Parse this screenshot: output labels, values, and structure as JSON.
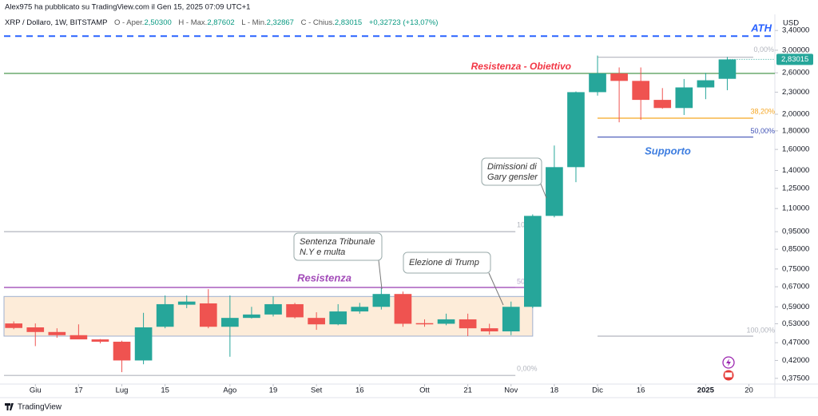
{
  "header": {
    "published": "Alex975 ha pubblicato su TradingView.com il Gen 15, 2025 07:09 UTC+1",
    "symbol": "XRP / Dollaro, 1W, BITSTAMP",
    "ohlc": [
      {
        "label": "O - Aper.",
        "value": "2,50300"
      },
      {
        "label": "H - Max.",
        "value": "2,87602"
      },
      {
        "label": "L - Min.",
        "value": "2,32867"
      },
      {
        "label": "C - Chius.",
        "value": "2,83015"
      }
    ],
    "change": "+0,32723 (+13,07%)"
  },
  "chart_data": {
    "type": "candlestick",
    "x": [
      0,
      1,
      2,
      3,
      4,
      5,
      6,
      7,
      8,
      9,
      10,
      11,
      12,
      13,
      14,
      15,
      16,
      17,
      18,
      19,
      20,
      21,
      22,
      23,
      24,
      25,
      26,
      27,
      28,
      29,
      30,
      31,
      32,
      33
    ],
    "open": [
      0.531,
      0.518,
      0.503,
      0.493,
      0.48,
      0.473,
      0.42,
      0.52,
      0.598,
      0.603,
      0.52,
      0.55,
      0.562,
      0.6,
      0.55,
      0.528,
      0.573,
      0.59,
      0.64,
      0.532,
      0.53,
      0.545,
      0.515,
      0.505,
      0.59,
      1.05,
      1.43,
      2.3,
      2.59,
      2.47,
      2.19,
      2.08,
      2.37,
      2.503
    ],
    "high": [
      0.538,
      0.531,
      0.515,
      0.528,
      0.481,
      0.476,
      0.568,
      0.634,
      0.634,
      0.66,
      0.634,
      0.59,
      0.63,
      0.605,
      0.57,
      0.6,
      0.605,
      0.665,
      0.65,
      0.545,
      0.565,
      0.565,
      0.53,
      0.61,
      1.06,
      1.64,
      2.31,
      2.9,
      2.69,
      2.69,
      2.36,
      2.5,
      2.6,
      2.87602
    ],
    "low": [
      0.512,
      0.46,
      0.485,
      0.485,
      0.468,
      0.39,
      0.41,
      0.515,
      0.585,
      0.515,
      0.43,
      0.548,
      0.555,
      0.548,
      0.51,
      0.525,
      0.565,
      0.58,
      0.52,
      0.52,
      0.525,
      0.49,
      0.495,
      0.493,
      0.585,
      1.04,
      1.3,
      2.25,
      1.9,
      1.93,
      2.07,
      1.99,
      2.2,
      2.32867
    ],
    "close": [
      0.516,
      0.503,
      0.493,
      0.48,
      0.473,
      0.42,
      0.518,
      0.6,
      0.61,
      0.52,
      0.55,
      0.562,
      0.6,
      0.552,
      0.528,
      0.573,
      0.59,
      0.64,
      0.53,
      0.528,
      0.545,
      0.515,
      0.505,
      0.59,
      1.05,
      1.43,
      2.3,
      2.59,
      2.47,
      2.19,
      2.08,
      2.37,
      2.48,
      2.83015
    ],
    "up_color": "#26a69a",
    "down_color": "#ef5350",
    "xlim": [
      -0.45,
      35.2
    ],
    "xticks": [
      {
        "value": 1,
        "label": "Giu"
      },
      {
        "value": 3,
        "label": "17"
      },
      {
        "value": 5,
        "label": "Lug"
      },
      {
        "value": 7,
        "label": "15"
      },
      {
        "value": 10,
        "label": "Ago"
      },
      {
        "value": 12,
        "label": "19"
      },
      {
        "value": 14,
        "label": "Set"
      },
      {
        "value": 16,
        "label": "16"
      },
      {
        "value": 19,
        "label": "Ott"
      },
      {
        "value": 21,
        "label": "21"
      },
      {
        "value": 23,
        "label": "Nov"
      },
      {
        "value": 25,
        "label": "18"
      },
      {
        "value": 27,
        "label": "Dic"
      },
      {
        "value": 29,
        "label": "16"
      },
      {
        "value": 32,
        "label": "2025"
      },
      {
        "value": 34,
        "label": "20"
      }
    ],
    "ylim": [
      0.358,
      3.69
    ],
    "log_scale": true,
    "grid": false,
    "y_unit": "USD",
    "yticks": [
      {
        "value": 3.4,
        "label": "3,40000"
      },
      {
        "value": 3,
        "label": "3,00000"
      },
      {
        "value": 2.6,
        "label": "2,60000"
      },
      {
        "value": 2.3,
        "label": "2,30000"
      },
      {
        "value": 2,
        "label": "2,00000"
      },
      {
        "value": 1.8,
        "label": "1,80000"
      },
      {
        "value": 1.6,
        "label": "1,60000"
      },
      {
        "value": 1.4,
        "label": "1,40000"
      },
      {
        "value": 1.25,
        "label": "1,25000"
      },
      {
        "value": 1.1,
        "label": "1,10000"
      },
      {
        "value": 0.95,
        "label": "0,95000"
      },
      {
        "value": 0.85,
        "label": "0,85000"
      },
      {
        "value": 0.75,
        "label": "0,75000"
      },
      {
        "value": 0.67,
        "label": "0,67000"
      },
      {
        "value": 0.59,
        "label": "0,59000"
      },
      {
        "value": 0.53,
        "label": "0,53000"
      },
      {
        "value": 0.47,
        "label": "0,47000"
      },
      {
        "value": 0.42,
        "label": "0,42000"
      },
      {
        "value": 0.375,
        "label": "0,37500"
      }
    ],
    "last_price_label": "2,83015",
    "zone": {
      "low": 0.49,
      "high": 0.63,
      "x_range": [
        -0.45,
        24
      ],
      "fill": "#fdecd9",
      "border": "#9fb0d0"
    },
    "levels": [
      {
        "label": "ATH",
        "value": 3.28,
        "color": "#2962ff",
        "dashed": true,
        "x_range": [
          -0.45,
          35.2
        ]
      },
      {
        "label": "Resistenza - Obiettivo",
        "value": 2.59,
        "color": "#388e3c",
        "x_range": [
          -0.45,
          35.2
        ]
      },
      {
        "label": "50",
        "value": 0.667,
        "color": "#b8a8cc",
        "x_range": [
          -0.45,
          23.2
        ]
      },
      {
        "label": "Resistenza",
        "value": 0.667,
        "color": "#a24ab8",
        "x_range": [
          -0.45,
          24
        ]
      },
      {
        "label": "0,00%",
        "value": 2.87,
        "color": "#b2b5be",
        "x_range": [
          27,
          34.2
        ]
      },
      {
        "label": "38,20%",
        "value": 1.95,
        "color": "#f5a623",
        "x_range": [
          27,
          34.2
        ]
      },
      {
        "label": "50,00%",
        "value": 1.73,
        "color": "#3f51b5",
        "x_range": [
          27,
          34.2
        ]
      },
      {
        "label": "100,00%",
        "value": 0.49,
        "color": "#b2b5be",
        "x_range": [
          27,
          34.2
        ]
      },
      {
        "label": "10",
        "value": 0.95,
        "color": "#b2b5be",
        "x_range": [
          -0.45,
          23.2
        ]
      },
      {
        "label": "0,00%",
        "value": 0.382,
        "color": "#b2b5be",
        "x_range": [
          -0.45,
          23.2
        ]
      }
    ],
    "annotations": [
      {
        "lines": [
          "Sentenza Tribunale",
          "N.Y e multa"
        ]
      },
      {
        "lines": [
          "Elezione di Trump"
        ]
      },
      {
        "lines": [
          "Dimissioni di",
          "Gary gensler"
        ]
      },
      {
        "lines": [
          "Supporto"
        ]
      }
    ]
  },
  "footer": {
    "brand": "TradingView"
  }
}
